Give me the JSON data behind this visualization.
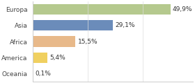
{
  "categories": [
    "Europa",
    "Asia",
    "Africa",
    "America",
    "Oceania"
  ],
  "values": [
    49.9,
    29.1,
    15.5,
    5.4,
    0.1
  ],
  "labels": [
    "49,9%",
    "29,1%",
    "15,5%",
    "5,4%",
    "0,1%"
  ],
  "bar_colors": [
    "#b5c98e",
    "#6b8cba",
    "#e8b98a",
    "#f0d060",
    "#aaaaaa"
  ],
  "background_color": "#ffffff",
  "xlim": [
    0,
    58
  ],
  "bar_height": 0.65,
  "label_fontsize": 6.5,
  "tick_fontsize": 6.5,
  "figsize": [
    2.8,
    1.2
  ],
  "dpi": 100
}
